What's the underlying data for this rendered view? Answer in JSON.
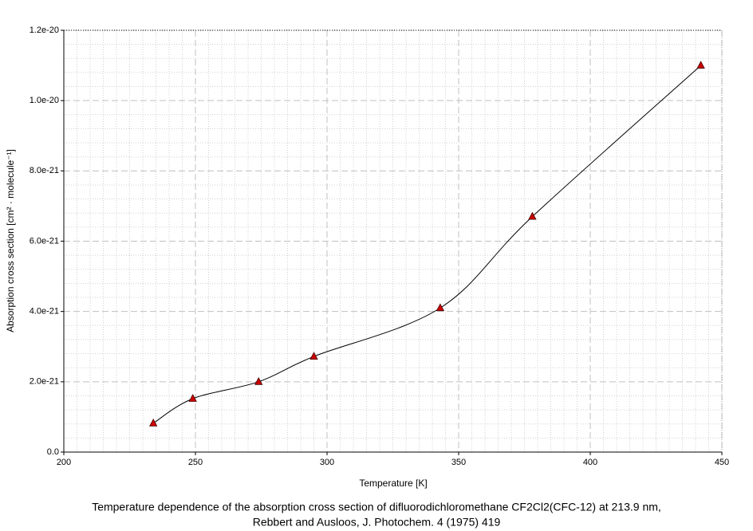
{
  "chart_data": {
    "type": "scatter",
    "caption": [
      "Temperature dependence of the absorption cross section of difluorodichloromethane CF2Cl2(CFC-12) at 213.9 nm,",
      "Rebbert and Ausloos, J. Photochem. 4 (1975) 419"
    ],
    "xlabel": "Temperature [K]",
    "ylabel": "Absorption cross section [cm² · molecule⁻¹]",
    "series": [
      {
        "color": "#cc0000",
        "line_color": "#000000",
        "smooth": true,
        "x": [
          234,
          249,
          274,
          295,
          343,
          378,
          442
        ],
        "values": [
          8.2e-22,
          1.52e-21,
          2e-21,
          2.72e-21,
          4.1e-21,
          6.7e-21,
          1.1e-20
        ]
      }
    ],
    "xlim": [
      200,
      450
    ],
    "xticks": [
      200,
      250,
      300,
      350,
      400,
      450
    ],
    "ylim": [
      0,
      1.2e-20
    ],
    "yticks": [
      {
        "value": 0,
        "label": "0.0"
      },
      {
        "value": 2e-21,
        "label": "2.0e-21"
      },
      {
        "value": 4e-21,
        "label": "4.0e-21"
      },
      {
        "value": 6e-21,
        "label": "6.0e-21"
      },
      {
        "value": 8e-21,
        "label": "8.0e-21"
      },
      {
        "value": 1e-20,
        "label": "1.0e-20"
      },
      1.2e-20
    ],
    "grid": true,
    "minor_grid": true
  }
}
